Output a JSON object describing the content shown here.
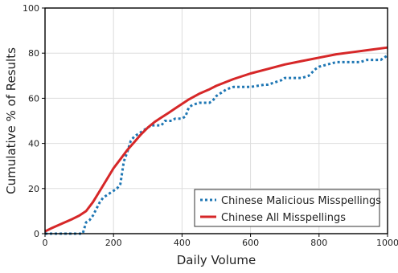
{
  "chart_data": {
    "type": "line",
    "title": "",
    "xlabel": "Daily Volume",
    "ylabel": "Cumulative % of Results",
    "xlim": [
      0,
      1000
    ],
    "ylim": [
      0,
      100
    ],
    "xticks": [
      "0",
      "200",
      "400",
      "600",
      "800",
      "1000"
    ],
    "yticks": [
      "0",
      "20",
      "40",
      "60",
      "80",
      "100"
    ],
    "grid": true,
    "legend_position": "bottom-right",
    "series": [
      {
        "name": "Chinese Malicious Misspellings",
        "color": "#1f77b4",
        "style": "dotted",
        "x": [
          0,
          100,
          110,
          120,
          130,
          140,
          150,
          160,
          170,
          180,
          190,
          200,
          210,
          220,
          230,
          240,
          250,
          260,
          270,
          280,
          290,
          300,
          310,
          320,
          330,
          340,
          350,
          360,
          370,
          380,
          390,
          400,
          410,
          420,
          430,
          450,
          480,
          490,
          500,
          510,
          530,
          550,
          580,
          600,
          640,
          650,
          670,
          690,
          700,
          750,
          770,
          790,
          800,
          850,
          880,
          900,
          920,
          940,
          960,
          980,
          1000
        ],
        "y": [
          0,
          0,
          0,
          5,
          6,
          8,
          11,
          14,
          16,
          17,
          18,
          19,
          20,
          22,
          32,
          36,
          41,
          43,
          44,
          45,
          46,
          47,
          48,
          48,
          48,
          48,
          50,
          50,
          50,
          51,
          51,
          51,
          52,
          56,
          57,
          58,
          58,
          59,
          61,
          62,
          64,
          65,
          65,
          65,
          66,
          66,
          67,
          68,
          69,
          69,
          70,
          73,
          74,
          76,
          76,
          76,
          76,
          77,
          77,
          77,
          79
        ]
      },
      {
        "name": "Chinese All Misspellings",
        "color": "#d62728",
        "style": "solid",
        "x": [
          0,
          20,
          50,
          80,
          100,
          120,
          140,
          160,
          180,
          200,
          220,
          240,
          260,
          280,
          300,
          320,
          340,
          360,
          380,
          400,
          420,
          450,
          480,
          500,
          550,
          600,
          650,
          700,
          750,
          800,
          850,
          900,
          950,
          1000
        ],
        "y": [
          1,
          2.5,
          4.5,
          6.5,
          8,
          10,
          14,
          19,
          24,
          29,
          33,
          37,
          40.5,
          44,
          47,
          49.5,
          51.5,
          53.5,
          55.5,
          57.5,
          59.5,
          62,
          64,
          65.5,
          68.5,
          71,
          73,
          75,
          76.5,
          78,
          79.5,
          80.5,
          81.5,
          82.5
        ]
      }
    ]
  }
}
